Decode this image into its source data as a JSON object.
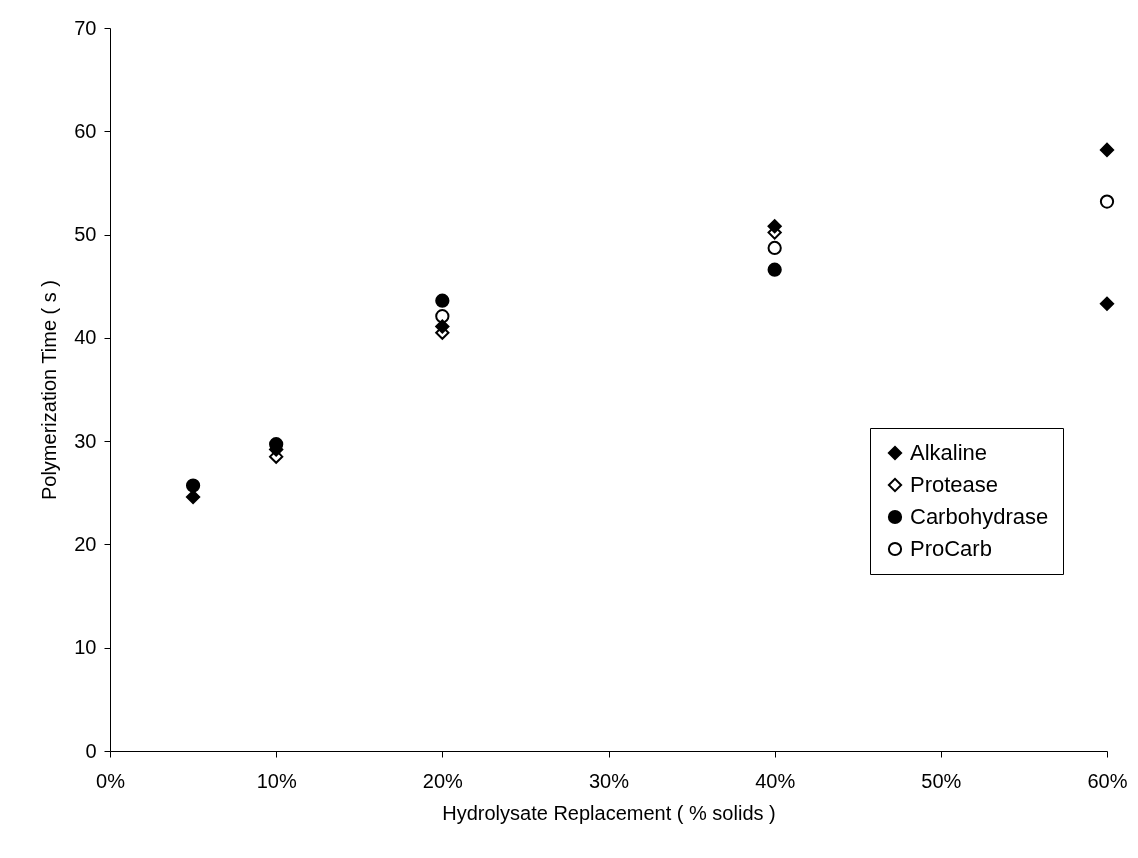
{
  "chart_data": {
    "type": "scatter",
    "xlabel": "Hydrolysate Replacement ( % solids )",
    "ylabel": "Polymerization Time ( s )",
    "xlim": [
      0,
      60
    ],
    "xticks": [
      {
        "value": 0,
        "label": "0%"
      },
      {
        "value": 10,
        "label": "10%"
      },
      {
        "value": 20,
        "label": "20%"
      },
      {
        "value": 30,
        "label": "30%"
      },
      {
        "value": 40,
        "label": "40%"
      },
      {
        "value": 50,
        "label": "50%"
      },
      {
        "value": 60,
        "label": "60%"
      }
    ],
    "ylim": [
      0,
      70
    ],
    "yticks": [
      0,
      10,
      20,
      30,
      40,
      50,
      60,
      70
    ],
    "grid": false,
    "legend": "right",
    "series": [
      {
        "name": "Alkaline",
        "color": "#000000",
        "marker": "diamond",
        "x": [
          5,
          10,
          20,
          40,
          60,
          60
        ],
        "values": [
          24.6,
          29.2,
          41.1,
          50.8,
          58.2,
          43.3
        ]
      },
      {
        "name": "Protease",
        "color": "#ffffff",
        "marker": "diamond",
        "x": [
          10,
          20,
          40
        ],
        "values": [
          28.5,
          40.5,
          50.2
        ]
      },
      {
        "name": "Carbohydrase",
        "color": "#000000",
        "marker": "circle",
        "x": [
          5,
          10,
          20,
          40
        ],
        "values": [
          25.7,
          29.7,
          43.6,
          46.6
        ]
      },
      {
        "name": "ProCarb",
        "color": "#ffffff",
        "marker": "circle",
        "x": [
          20,
          40,
          60
        ],
        "values": [
          42.1,
          48.7,
          53.2
        ]
      }
    ]
  }
}
